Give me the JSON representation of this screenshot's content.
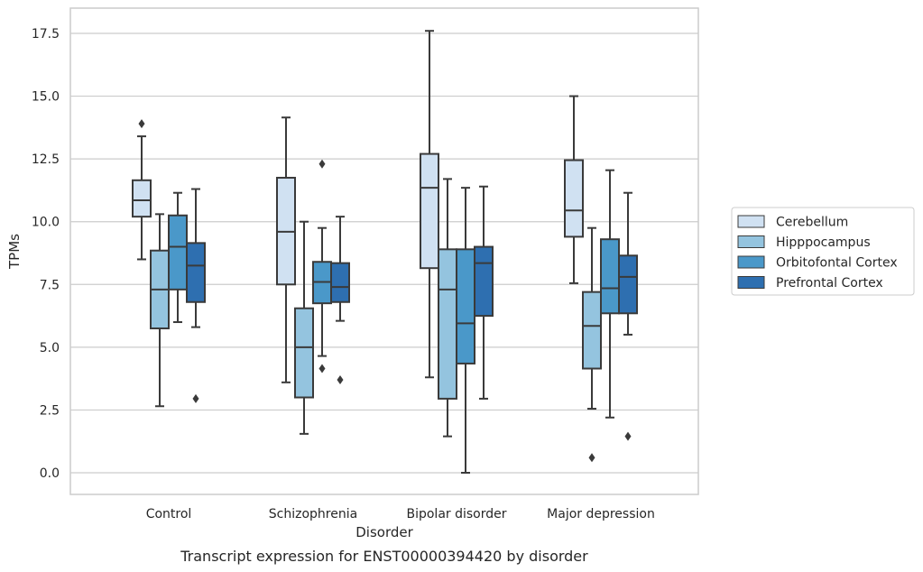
{
  "chart_data": {
    "type": "box",
    "xlabel": "Disorder",
    "ylabel": "TPMs",
    "caption": "Transcript expression for ENST00000394420 by disorder",
    "ylim": [
      -0.85,
      18.5
    ],
    "yticks": [
      0.0,
      2.5,
      5.0,
      7.5,
      10.0,
      12.5,
      15.0,
      17.5
    ],
    "ytick_labels": [
      "0.0",
      "2.5",
      "5.0",
      "7.5",
      "10.0",
      "12.5",
      "15.0",
      "17.5"
    ],
    "grid": "horizontal",
    "legend_position": "right",
    "categories": [
      "Control",
      "Schizophrenia",
      "Bipolar disorder",
      "Major depression"
    ],
    "series": [
      {
        "name": "Cerebellum",
        "color": "#d0e1f2",
        "boxes": [
          {
            "whisker_low": 8.5,
            "q1": 10.2,
            "median": 10.85,
            "q3": 11.65,
            "whisker_high": 13.4,
            "outliers": [
              13.9
            ]
          },
          {
            "whisker_low": 3.6,
            "q1": 7.5,
            "median": 9.6,
            "q3": 11.75,
            "whisker_high": 14.15,
            "outliers": []
          },
          {
            "whisker_low": 3.8,
            "q1": 8.15,
            "median": 11.35,
            "q3": 12.7,
            "whisker_high": 17.6,
            "outliers": []
          },
          {
            "whisker_low": 7.55,
            "q1": 9.4,
            "median": 10.45,
            "q3": 12.45,
            "whisker_high": 15.0,
            "outliers": []
          }
        ]
      },
      {
        "name": "Hipppocampus",
        "color": "#94c4df",
        "boxes": [
          {
            "whisker_low": 2.65,
            "q1": 5.75,
            "median": 7.3,
            "q3": 8.85,
            "whisker_high": 10.3,
            "outliers": []
          },
          {
            "whisker_low": 1.55,
            "q1": 3.0,
            "median": 5.0,
            "q3": 6.55,
            "whisker_high": 10.0,
            "outliers": []
          },
          {
            "whisker_low": 1.45,
            "q1": 2.95,
            "median": 7.3,
            "q3": 8.9,
            "whisker_high": 11.7,
            "outliers": []
          },
          {
            "whisker_low": 2.55,
            "q1": 4.15,
            "median": 5.85,
            "q3": 7.2,
            "whisker_high": 9.75,
            "outliers": [
              0.6
            ]
          }
        ]
      },
      {
        "name": "Orbitofontal Cortex",
        "color": "#4a98c9",
        "boxes": [
          {
            "whisker_low": 6.0,
            "q1": 7.3,
            "median": 9.0,
            "q3": 10.25,
            "whisker_high": 11.15,
            "outliers": []
          },
          {
            "whisker_low": 4.65,
            "q1": 6.75,
            "median": 7.6,
            "q3": 8.4,
            "whisker_high": 9.75,
            "outliers": [
              12.3,
              4.15
            ]
          },
          {
            "whisker_low": 0.0,
            "q1": 4.35,
            "median": 5.95,
            "q3": 8.9,
            "whisker_high": 11.35,
            "outliers": []
          },
          {
            "whisker_low": 2.2,
            "q1": 6.35,
            "median": 7.35,
            "q3": 9.3,
            "whisker_high": 12.05,
            "outliers": []
          }
        ]
      },
      {
        "name": "Prefrontal Cortex",
        "color": "#2e6fb0",
        "boxes": [
          {
            "whisker_low": 5.8,
            "q1": 6.8,
            "median": 8.25,
            "q3": 9.15,
            "whisker_high": 11.3,
            "outliers": [
              2.95
            ]
          },
          {
            "whisker_low": 6.05,
            "q1": 6.8,
            "median": 7.4,
            "q3": 8.35,
            "whisker_high": 10.2,
            "outliers": [
              3.7
            ]
          },
          {
            "whisker_low": 2.95,
            "q1": 6.25,
            "median": 8.35,
            "q3": 9.0,
            "whisker_high": 11.4,
            "outliers": []
          },
          {
            "whisker_low": 5.5,
            "q1": 6.35,
            "median": 7.8,
            "q3": 8.65,
            "whisker_high": 11.15,
            "outliers": [
              1.45
            ]
          }
        ]
      }
    ]
  }
}
